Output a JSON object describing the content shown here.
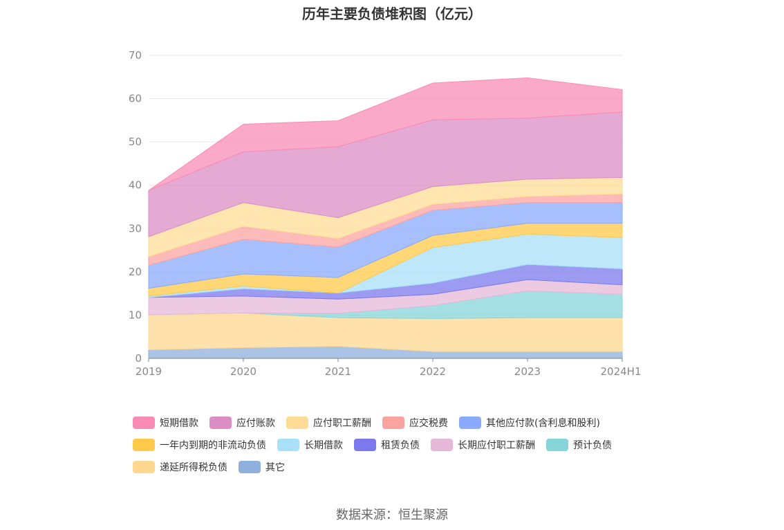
{
  "chart_data": {
    "type": "area",
    "stacked": true,
    "title": "历年主要负债堆积图（亿元）",
    "categories": [
      "2019",
      "2020",
      "2021",
      "2022",
      "2023",
      "2024H1"
    ],
    "ylim": [
      0,
      70
    ],
    "yticks": [
      0,
      10,
      20,
      30,
      40,
      50,
      60,
      70
    ],
    "grid": true,
    "legend_position": "bottom",
    "series": [
      {
        "name": "其它",
        "color": "#8fb0dd",
        "values": [
          2.0,
          2.5,
          2.8,
          1.6,
          1.6,
          1.6
        ]
      },
      {
        "name": "递延所得税负债",
        "color": "#ffd88f",
        "values": [
          8.1,
          8.0,
          6.6,
          7.6,
          7.8,
          7.8
        ]
      },
      {
        "name": "预计负债",
        "color": "#86d6d9",
        "values": [
          0.0,
          0.0,
          1.0,
          3.0,
          6.2,
          5.4
        ]
      },
      {
        "name": "长期应付职工薪酬",
        "color": "#e6b8d8",
        "values": [
          4.0,
          3.9,
          3.3,
          2.6,
          2.6,
          2.2
        ]
      },
      {
        "name": "租赁负债",
        "color": "#7b79ec",
        "values": [
          0.0,
          1.7,
          1.4,
          2.6,
          3.5,
          3.7
        ]
      },
      {
        "name": "长期借款",
        "color": "#a8e0f8",
        "values": [
          0.3,
          0.6,
          0.0,
          8.2,
          7.0,
          7.2
        ]
      },
      {
        "name": "一年内到期的非流动负债",
        "color": "#ffc94a",
        "values": [
          1.8,
          2.8,
          3.6,
          2.8,
          2.5,
          3.3
        ]
      },
      {
        "name": "其他应付款(含利息和股利)",
        "color": "#8aaafc",
        "values": [
          5.3,
          8.0,
          7.0,
          5.8,
          4.8,
          4.8
        ]
      },
      {
        "name": "应交税费",
        "color": "#fba3a1",
        "values": [
          2.0,
          3.0,
          2.0,
          1.4,
          1.4,
          2.0
        ]
      },
      {
        "name": "应付职工薪酬",
        "color": "#ffdc96",
        "values": [
          4.6,
          5.5,
          4.8,
          4.1,
          4.0,
          3.8
        ]
      },
      {
        "name": "应付账款",
        "color": "#db8dc4",
        "values": [
          10.7,
          11.7,
          16.4,
          15.4,
          14.1,
          15.1
        ]
      },
      {
        "name": "短期借款",
        "color": "#f98cb5",
        "values": [
          0.0,
          6.4,
          6.0,
          8.5,
          9.3,
          5.2
        ]
      }
    ],
    "legend_order": [
      "短期借款",
      "应付账款",
      "应付职工薪酬",
      "应交税费",
      "其他应付款(含利息和股利)",
      "一年内到期的非流动负债",
      "长期借款",
      "租赁负债",
      "长期应付职工薪酬",
      "预计负债",
      "递延所得税负债",
      "其它"
    ]
  },
  "source": "数据来源：恒生聚源"
}
